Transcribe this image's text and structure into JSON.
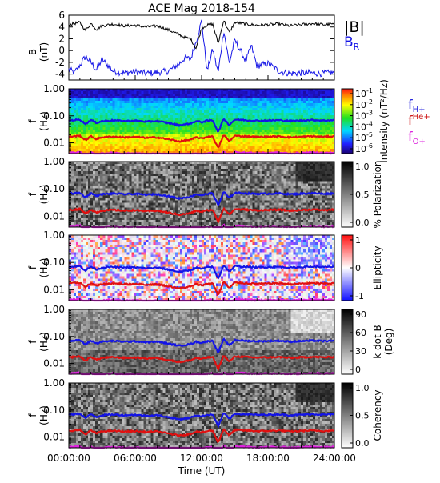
{
  "chart_data": [
    {
      "type": "line",
      "title": "ACE Mag 2018-154",
      "ylabel_top": "B",
      "ylabel_bottom": "(nT)",
      "ylim": [
        -5,
        6
      ],
      "yticks": [
        "6",
        "4",
        "2",
        "0",
        "-2",
        "-4"
      ],
      "ytick_values": [
        6,
        4,
        2,
        0,
        -2,
        -4
      ],
      "xlim": [
        0,
        24
      ],
      "grid": false,
      "legend_position": "right",
      "series": [
        {
          "name": "|B|",
          "color": "#000000",
          "x": [
            0,
            1,
            1.5,
            2,
            2.5,
            3,
            4,
            5,
            6,
            7,
            8,
            9,
            10,
            10.5,
            11,
            11.5,
            12,
            12.5,
            13,
            13.5,
            14,
            14.5,
            15,
            16,
            17,
            18,
            19,
            20,
            21,
            22,
            23,
            24
          ],
          "values": [
            4.4,
            4.8,
            3.4,
            4.6,
            3.6,
            4.2,
            4.5,
            4.2,
            4.3,
            4.0,
            4.2,
            3.5,
            2.7,
            2.2,
            2.0,
            0.4,
            3.8,
            4.3,
            4.5,
            1.2,
            5.2,
            3.0,
            4.8,
            4.5,
            4.3,
            4.4,
            4.5,
            4.2,
            4.4,
            4.6,
            4.4,
            4.5
          ]
        },
        {
          "name": "B",
          "subscript": "R",
          "color": "#1414e6",
          "x": [
            0,
            0.5,
            1,
            1.5,
            2,
            2.5,
            3,
            4,
            5,
            6,
            7,
            8,
            9,
            10,
            10.5,
            11,
            11.5,
            12,
            12.5,
            13,
            13.5,
            14,
            14.5,
            15,
            16,
            16.5,
            17,
            18,
            19,
            20,
            21,
            22,
            23,
            24
          ],
          "values": [
            -3.2,
            -3.8,
            -2.5,
            -1.0,
            -2.0,
            -3.3,
            -1.5,
            -3.5,
            -3.8,
            -3.6,
            -3.9,
            -3.7,
            -3.5,
            -2.2,
            -1.2,
            -1.5,
            1.5,
            5.0,
            -3.5,
            0.2,
            -3.8,
            3.5,
            -2.2,
            1.8,
            -1.8,
            0.8,
            -2.6,
            -2.2,
            -3.5,
            -3.9,
            -3.8,
            -3.8,
            -3.9,
            -3.7
          ]
        }
      ]
    },
    {
      "type": "heatmap",
      "ylabel_top": "f",
      "ylabel_bottom": "(Hz)",
      "yscale": "log",
      "ylim": [
        0.004,
        1.0
      ],
      "yticks": [
        "1.00",
        "0.10",
        "0.01"
      ],
      "ytick_values": [
        1.0,
        0.1,
        0.01
      ],
      "xlim": [
        0,
        24
      ],
      "colorbar_label": "Intensity (nT²/Hz)",
      "colorbar_ticks": [
        "10",
        "10",
        "10",
        "10",
        "10",
        "10"
      ],
      "colorbar_tick_exponents": [
        "-1",
        "-2",
        "-3",
        "-4",
        "-5",
        "-6"
      ],
      "colormap": "rainbow",
      "gyro_labels": [
        {
          "base": "f",
          "sub": "H+",
          "color": "#2222dd"
        },
        {
          "base": "f",
          "sup": "He+",
          "color": "#cc1111"
        },
        {
          "base": "f",
          "sub": "O+",
          "color": "#dd22dd"
        }
      ]
    },
    {
      "type": "heatmap",
      "ylabel_top": "f",
      "ylabel_bottom": "(Hz)",
      "yscale": "log",
      "ylim": [
        0.004,
        1.0
      ],
      "yticks": [
        "1.00",
        "0.10",
        "0.01"
      ],
      "ytick_values": [
        1.0,
        0.1,
        0.01
      ],
      "xlim": [
        0,
        24
      ],
      "colorbar_label": "% Polarization",
      "colorbar_ticks": [
        "1.0",
        "0.5",
        "0.0"
      ],
      "colormap": "gray"
    },
    {
      "type": "heatmap",
      "ylabel_top": "f",
      "ylabel_bottom": "(Hz)",
      "yscale": "log",
      "ylim": [
        0.004,
        1.0
      ],
      "yticks": [
        "1.00",
        "0.10",
        "0.01"
      ],
      "ytick_values": [
        1.0,
        0.1,
        0.01
      ],
      "xlim": [
        0,
        24
      ],
      "colorbar_label": "Ellipticity",
      "colorbar_ticks": [
        "1",
        "0",
        "-1"
      ],
      "colormap": "blue-white-red"
    },
    {
      "type": "heatmap",
      "ylabel_top": "f",
      "ylabel_bottom": "(Hz)",
      "yscale": "log",
      "ylim": [
        0.004,
        1.0
      ],
      "yticks": [
        "1.00",
        "0.10",
        "0.01"
      ],
      "ytick_values": [
        1.0,
        0.1,
        0.01
      ],
      "xlim": [
        0,
        24
      ],
      "colorbar_label": "k dot B",
      "colorbar_label2": "(Deg)",
      "colorbar_ticks": [
        "90",
        "60",
        "30",
        "0"
      ],
      "colormap": "gray"
    },
    {
      "type": "heatmap",
      "ylabel_top": "f",
      "ylabel_bottom": "(Hz)",
      "yscale": "log",
      "ylim": [
        0.004,
        1.0
      ],
      "yticks": [
        "1.00",
        "0.10",
        "0.01"
      ],
      "ytick_values": [
        1.0,
        0.1,
        0.01
      ],
      "xlim": [
        0,
        24
      ],
      "colorbar_label": "Coherency",
      "colorbar_ticks": [
        "1.0",
        "0.5",
        "0.0"
      ],
      "colormap": "gray",
      "xlabel": "Time (UT)",
      "xticks": [
        "00:00:00",
        "06:00:00",
        "12:00:00",
        "18:00:00",
        "24:00:00"
      ],
      "xtick_values": [
        0,
        6,
        12,
        18,
        24
      ]
    }
  ],
  "gyrofrequency_lines": {
    "H+": {
      "color": "#1414e6",
      "x": [
        0,
        1,
        1.5,
        2,
        2.5,
        3,
        4,
        5,
        6,
        7,
        8,
        9,
        10,
        11,
        11.5,
        12,
        12.5,
        13,
        13.5,
        14,
        14.5,
        15,
        16,
        17,
        18,
        19,
        20,
        21,
        22,
        23,
        24
      ],
      "values": [
        0.067,
        0.073,
        0.05,
        0.07,
        0.055,
        0.064,
        0.068,
        0.064,
        0.066,
        0.061,
        0.064,
        0.054,
        0.045,
        0.052,
        0.064,
        0.058,
        0.066,
        0.069,
        0.025,
        0.079,
        0.046,
        0.073,
        0.069,
        0.066,
        0.067,
        0.069,
        0.064,
        0.067,
        0.07,
        0.067,
        0.069
      ]
    },
    "He+": {
      "color": "#e01010",
      "x": [
        0,
        1,
        1.5,
        2,
        2.5,
        3,
        4,
        5,
        6,
        7,
        8,
        9,
        10,
        11,
        11.5,
        12,
        12.5,
        13,
        13.5,
        14,
        14.5,
        15,
        16,
        17,
        18,
        19,
        20,
        21,
        22,
        23,
        24
      ],
      "values": [
        0.0168,
        0.0183,
        0.0125,
        0.0175,
        0.0138,
        0.016,
        0.017,
        0.016,
        0.0165,
        0.0153,
        0.016,
        0.0135,
        0.0113,
        0.013,
        0.016,
        0.0145,
        0.0165,
        0.0173,
        0.0063,
        0.0198,
        0.0115,
        0.0183,
        0.0173,
        0.0165,
        0.0168,
        0.0173,
        0.016,
        0.0168,
        0.0175,
        0.0168,
        0.0173
      ]
    },
    "O+": {
      "color": "#e020e0",
      "x": [
        0,
        1,
        1.5,
        2,
        2.5,
        3,
        4,
        5,
        6,
        7,
        8,
        9,
        10,
        11,
        11.5,
        12,
        12.5,
        13,
        13.5,
        14,
        14.5,
        15,
        16,
        17,
        18,
        19,
        20,
        21,
        22,
        23,
        24
      ],
      "values": [
        0.0042,
        0.0046,
        0.0031,
        0.0044,
        0.0034,
        0.004,
        0.0043,
        0.004,
        0.0041,
        0.0038,
        0.004,
        0.0034,
        0.0028,
        0.0033,
        0.004,
        0.0036,
        0.0041,
        0.0043,
        0.0016,
        0.0049,
        0.0029,
        0.0046,
        0.0043,
        0.0041,
        0.0042,
        0.0043,
        0.004,
        0.0042,
        0.0044,
        0.0042,
        0.0043
      ]
    }
  },
  "colors": {
    "axis": "#000000",
    "hplus": "#1414e6",
    "heplus": "#e01010",
    "oplus": "#e020e0"
  }
}
